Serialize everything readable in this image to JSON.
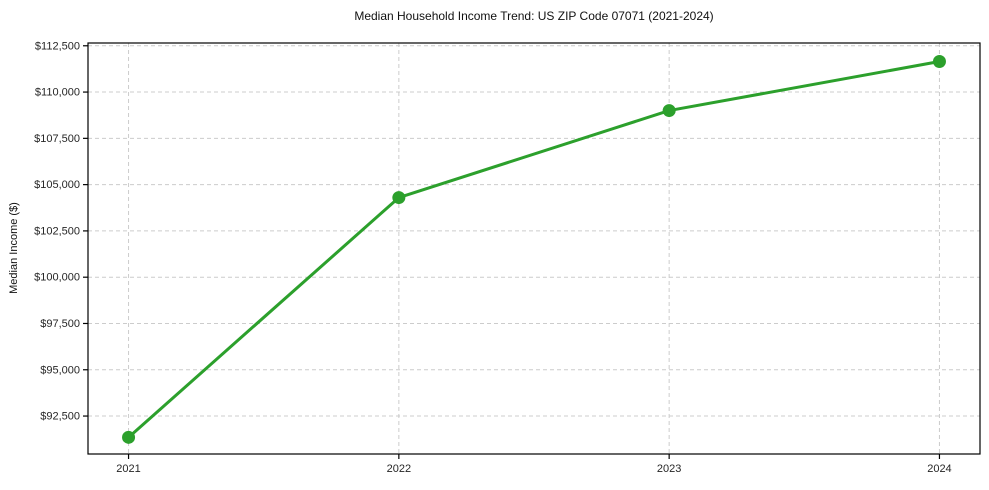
{
  "chart_data": {
    "type": "line",
    "title": "Median Household Income Trend: US ZIP Code 07071 (2021-2024)",
    "xlabel": "",
    "ylabel": "Median Income ($)",
    "categories": [
      "2021",
      "2022",
      "2023",
      "2024"
    ],
    "series": [
      {
        "name": "Median Household Income",
        "values": [
          91350,
          104300,
          109000,
          111650
        ]
      }
    ],
    "ytick_values": [
      92500,
      95000,
      97500,
      100000,
      102500,
      105000,
      107500,
      110000,
      112500
    ],
    "ytick_labels": [
      "$92,500",
      "$95,000",
      "$97,500",
      "$100,000",
      "$102,500",
      "$105,000",
      "$107,500",
      "$110,000",
      "$112,500"
    ],
    "ylim": [
      90450,
      112650
    ],
    "grid": true,
    "grid_style": "dashed",
    "legend": null,
    "line_color": "#2ca02c",
    "marker": "circle",
    "colors": {
      "line": "#2ca02c",
      "grid": "#cccccc",
      "axis": "#000000",
      "text": "#262626",
      "background": "#ffffff"
    }
  }
}
